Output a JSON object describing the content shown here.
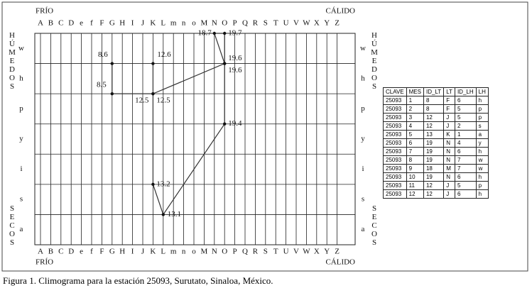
{
  "chart_data": {
    "type": "climogram",
    "top_left": "FRÍO",
    "top_right": "CÁLIDO",
    "side_top": "HÚMEDOS",
    "side_bottom": "SECOS",
    "x_categories": [
      "A",
      "B",
      "C",
      "D",
      "e",
      "f",
      "F",
      "G",
      "H",
      "I",
      "J",
      "K",
      "L",
      "m",
      "n",
      "o",
      "M",
      "N",
      "O",
      "P",
      "Q",
      "R",
      "S",
      "T",
      "U",
      "V",
      "W",
      "X",
      "Y",
      "Z"
    ],
    "y_categories": [
      "w",
      "h",
      "p",
      "y",
      "i",
      "s",
      "a"
    ],
    "point_labels": [
      8.6,
      8.5,
      12.5,
      13.2,
      13.1,
      19.4,
      19.6,
      19.7,
      18.7,
      19.6,
      12.5,
      12.6
    ],
    "table": {
      "columns": [
        "CLAVE",
        "MES",
        "ID_LT",
        "LT",
        "ID_LH",
        "LH"
      ],
      "rows": [
        [
          25093,
          1,
          8,
          "F",
          6,
          "h"
        ],
        [
          25093,
          2,
          8,
          "F",
          5,
          "p"
        ],
        [
          25093,
          3,
          12,
          "J",
          5,
          "p"
        ],
        [
          25093,
          4,
          12,
          "J",
          2,
          "s"
        ],
        [
          25093,
          5,
          13,
          "K",
          1,
          "a"
        ],
        [
          25093,
          6,
          19,
          "N",
          4,
          "y"
        ],
        [
          25093,
          7,
          19,
          "N",
          6,
          "h"
        ],
        [
          25093,
          8,
          19,
          "N",
          7,
          "w"
        ],
        [
          25093,
          9,
          18,
          "M",
          7,
          "w"
        ],
        [
          25093,
          10,
          19,
          "N",
          6,
          "h"
        ],
        [
          25093,
          11,
          12,
          "J",
          5,
          "p"
        ],
        [
          25093,
          12,
          12,
          "J",
          6,
          "h"
        ]
      ]
    },
    "caption": "Figura 1. Climograma para la estación 25093, Surutato, Sinaloa, México."
  }
}
